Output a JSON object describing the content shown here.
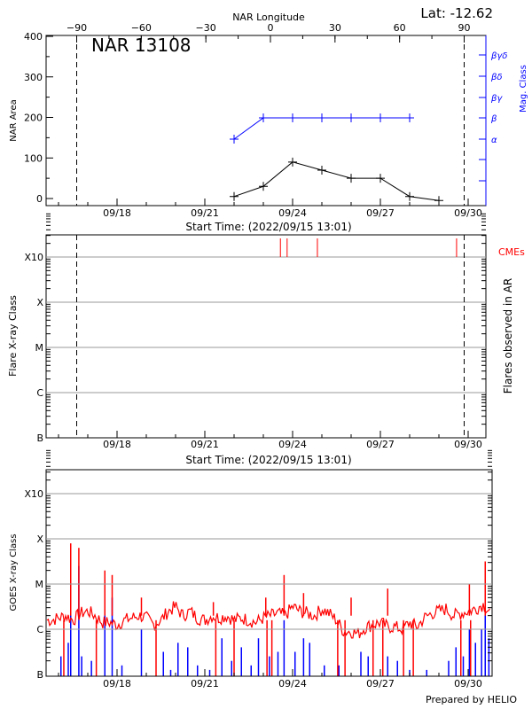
{
  "chart_data": [
    {
      "type": "line",
      "title": "NAR 13108",
      "latitude_label": "Lat: -12.62",
      "xlabel": "Start Time: (2022/09/15 13:01)",
      "top_axis_label": "NAR Longitude",
      "top_axis_ticks": [
        "-90",
        "-60",
        "-30",
        "0",
        "30",
        "60",
        "90"
      ],
      "ylabel": "NAR Area",
      "ylim": [
        -18,
        400
      ],
      "y_ticks": [
        "0",
        "100",
        "200",
        "300",
        "400"
      ],
      "x_ticks": [
        "09/18",
        "09/21",
        "09/24",
        "09/27",
        "09/30"
      ],
      "xlim": [
        "09/15 13:01",
        "09/30 14:30"
      ],
      "limb_markers_longitude": [
        -90,
        90
      ],
      "right_axis_label": "Mag. Class",
      "right_axis_ticks": [
        "βγδ",
        "βδ",
        "βγ",
        "β",
        "α"
      ],
      "right_axis_color": "#0000ff",
      "series": [
        {
          "name": "NAR Area",
          "color": "#000000",
          "x": [
            "09/22 00:00",
            "09/23 00:00",
            "09/24 00:00",
            "09/25 00:00",
            "09/26 00:00",
            "09/27 00:00",
            "09/28 00:00",
            "09/29 00:00"
          ],
          "values": [
            5,
            30,
            90,
            70,
            50,
            50,
            5,
            -5
          ]
        },
        {
          "name": "Mag. Class",
          "color": "#0000ff",
          "x": [
            "09/22 00:00",
            "09/23 00:00",
            "09/24 00:00",
            "09/25 00:00",
            "09/26 00:00",
            "09/27 00:00",
            "09/28 00:00"
          ],
          "values": [
            "α",
            "β",
            "β",
            "β",
            "β",
            "β",
            "β"
          ]
        }
      ]
    },
    {
      "type": "scatter",
      "xlabel": "Start Time: (2022/09/15 13:01)",
      "ylabel": "Flare X-ray Class",
      "right_label": "Flares observed in AR",
      "cme_label": "CMEs",
      "cme_color": "#ff0000",
      "y_ticks": [
        "X10",
        "X",
        "M",
        "C",
        "B"
      ],
      "x_ticks": [
        "09/18",
        "09/21",
        "09/24",
        "09/27",
        "09/30"
      ],
      "xlim": [
        "09/15 13:01",
        "09/30 14:30"
      ],
      "grid": true,
      "flares": [],
      "cme_times": [
        "09/23 14:00",
        "09/23 19:30",
        "09/24 20:20",
        "09/29 14:30"
      ]
    },
    {
      "type": "line",
      "ylabel": "GOES X-ray Class",
      "y_ticks": [
        "X10",
        "X",
        "M",
        "C",
        "B"
      ],
      "y_log_flux": [
        -3,
        -4,
        -5,
        -6,
        -7
      ],
      "x_ticks": [
        "09/18",
        "09/21",
        "09/24",
        "09/27",
        "09/30"
      ],
      "xlim": [
        "09/15 13:01",
        "09/30 19:30"
      ],
      "grid": true,
      "credit": "Prepared by HELIO",
      "series": [
        {
          "channel": "long",
          "color": "#ff0000",
          "x": [
            "09/15 18:00",
            "09/16 00:00",
            "09/16 06:00",
            "09/16 12:00",
            "09/16 18:00",
            "09/17 00:00",
            "09/17 06:00",
            "09/17 12:00",
            "09/17 18:00",
            "09/18 00:00",
            "09/18 06:00",
            "09/18 12:00",
            "09/18 18:00",
            "09/19 00:00",
            "09/19 06:00",
            "09/19 12:00",
            "09/19 18:00",
            "09/20 00:00",
            "09/20 06:00",
            "09/20 12:00",
            "09/20 18:00",
            "09/21 00:00",
            "09/21 06:00",
            "09/21 12:00",
            "09/21 18:00",
            "09/22 00:00",
            "09/22 06:00",
            "09/22 12:00",
            "09/22 18:00",
            "09/23 00:00",
            "09/23 06:00",
            "09/23 12:00",
            "09/23 18:00",
            "09/24 00:00",
            "09/24 06:00",
            "09/24 12:00",
            "09/24 18:00",
            "09/25 00:00",
            "09/25 06:00",
            "09/25 12:00",
            "09/25 18:00",
            "09/26 00:00",
            "09/26 06:00",
            "09/26 12:00",
            "09/26 18:00",
            "09/27 00:00",
            "09/27 06:00",
            "09/27 12:00",
            "09/27 18:00",
            "09/28 00:00",
            "09/28 06:00",
            "09/28 12:00",
            "09/28 18:00",
            "09/29 00:00",
            "09/29 06:00",
            "09/29 12:00",
            "09/29 18:00",
            "09/30 00:00",
            "09/30 06:00",
            "09/30 12:00",
            "09/30 18:00"
          ],
          "log_flux": [
            -5.8,
            -5.75,
            -5.7,
            -5.8,
            -5.65,
            -5.6,
            -5.7,
            -5.85,
            -5.85,
            -5.9,
            -5.8,
            -5.75,
            -5.7,
            -5.75,
            -5.9,
            -5.8,
            -5.6,
            -5.5,
            -5.7,
            -5.6,
            -5.75,
            -5.8,
            -5.7,
            -5.75,
            -5.7,
            -5.8,
            -5.75,
            -5.8,
            -5.85,
            -5.75,
            -5.7,
            -5.65,
            -5.7,
            -5.5,
            -5.6,
            -5.65,
            -5.7,
            -5.55,
            -5.65,
            -5.8,
            -6.05,
            -6.05,
            -6.1,
            -5.95,
            -5.9,
            -5.85,
            -5.95,
            -5.95,
            -6.0,
            -5.85,
            -5.95,
            -5.75,
            -5.65,
            -5.6,
            -5.55,
            -5.7,
            -5.65,
            -5.6,
            -5.55,
            -5.45,
            -5.6
          ],
          "peaks": [
            [
              "09/16 10:00",
              -4.1
            ],
            [
              "09/16 16:40",
              -4.2
            ],
            [
              "09/17 14:00",
              -4.7
            ],
            [
              "09/17 20:00",
              -4.8
            ],
            [
              "09/18 20:00",
              -5.3
            ],
            [
              "09/21 07:00",
              -5.4
            ],
            [
              "09/23 02:00",
              -5.3
            ],
            [
              "09/23 17:00",
              -4.8
            ],
            [
              "09/24 09:00",
              -5.2
            ],
            [
              "09/26 00:00",
              -5.3
            ],
            [
              "09/27 06:00",
              -5.1
            ],
            [
              "09/30 01:00",
              -5.0
            ],
            [
              "09/30 14:00",
              -4.5
            ]
          ],
          "dropouts": [
            "09/16 04:20",
            "09/17 07:00",
            "09/19 08:00",
            "09/21 09:00",
            "09/22 00:00",
            "09/23 03:00",
            "09/23 07:00",
            "09/25 13:00",
            "09/25 19:00",
            "09/26 18:00",
            "09/27 02:00",
            "09/27 19:00",
            "09/28 03:00",
            "09/29 18:00",
            "09/30 02:00"
          ]
        },
        {
          "channel": "short",
          "color": "#0000ff",
          "peaks": [
            [
              "09/16 02:00",
              -6.6
            ],
            [
              "09/16 08:00",
              -6.3
            ],
            [
              "09/16 10:00",
              -4.4
            ],
            [
              "09/16 16:40",
              -4.6
            ],
            [
              "09/16 19:00",
              -6.6
            ],
            [
              "09/17 03:00",
              -6.7
            ],
            [
              "09/17 14:00",
              -5.1
            ],
            [
              "09/17 20:00",
              -5.3
            ],
            [
              "09/18 04:00",
              -6.8
            ],
            [
              "09/18 20:00",
              -6.0
            ],
            [
              "09/19 14:00",
              -6.5
            ],
            [
              "09/19 20:00",
              -6.9
            ],
            [
              "09/20 02:00",
              -6.3
            ],
            [
              "09/20 10:00",
              -6.4
            ],
            [
              "09/20 18:00",
              -6.8
            ],
            [
              "09/21 04:00",
              -6.9
            ],
            [
              "09/21 14:00",
              -6.2
            ],
            [
              "09/21 22:00",
              -6.7
            ],
            [
              "09/22 06:00",
              -6.4
            ],
            [
              "09/22 14:00",
              -6.8
            ],
            [
              "09/22 20:00",
              -6.2
            ],
            [
              "09/23 05:00",
              -6.6
            ],
            [
              "09/23 12:00",
              -6.5
            ],
            [
              "09/23 17:00",
              -5.8
            ],
            [
              "09/24 02:00",
              -6.5
            ],
            [
              "09/24 09:00",
              -6.2
            ],
            [
              "09/24 14:00",
              -6.3
            ],
            [
              "09/25 02:00",
              -6.8
            ],
            [
              "09/25 14:00",
              -6.8
            ],
            [
              "09/26 08:00",
              -6.5
            ],
            [
              "09/26 14:00",
              -6.6
            ],
            [
              "09/27 06:00",
              -6.6
            ],
            [
              "09/27 14:00",
              -6.7
            ],
            [
              "09/28 00:00",
              -6.9
            ],
            [
              "09/28 14:00",
              -6.9
            ],
            [
              "09/29 08:00",
              -6.7
            ],
            [
              "09/29 14:00",
              -6.4
            ],
            [
              "09/29 20:00",
              -6.6
            ],
            [
              "09/30 01:00",
              -6.0
            ],
            [
              "09/30 06:00",
              -6.3
            ],
            [
              "09/30 11:00",
              -6.0
            ],
            [
              "09/30 14:00",
              -5.3
            ],
            [
              "09/30 17:00",
              -6.2
            ]
          ]
        }
      ]
    }
  ]
}
